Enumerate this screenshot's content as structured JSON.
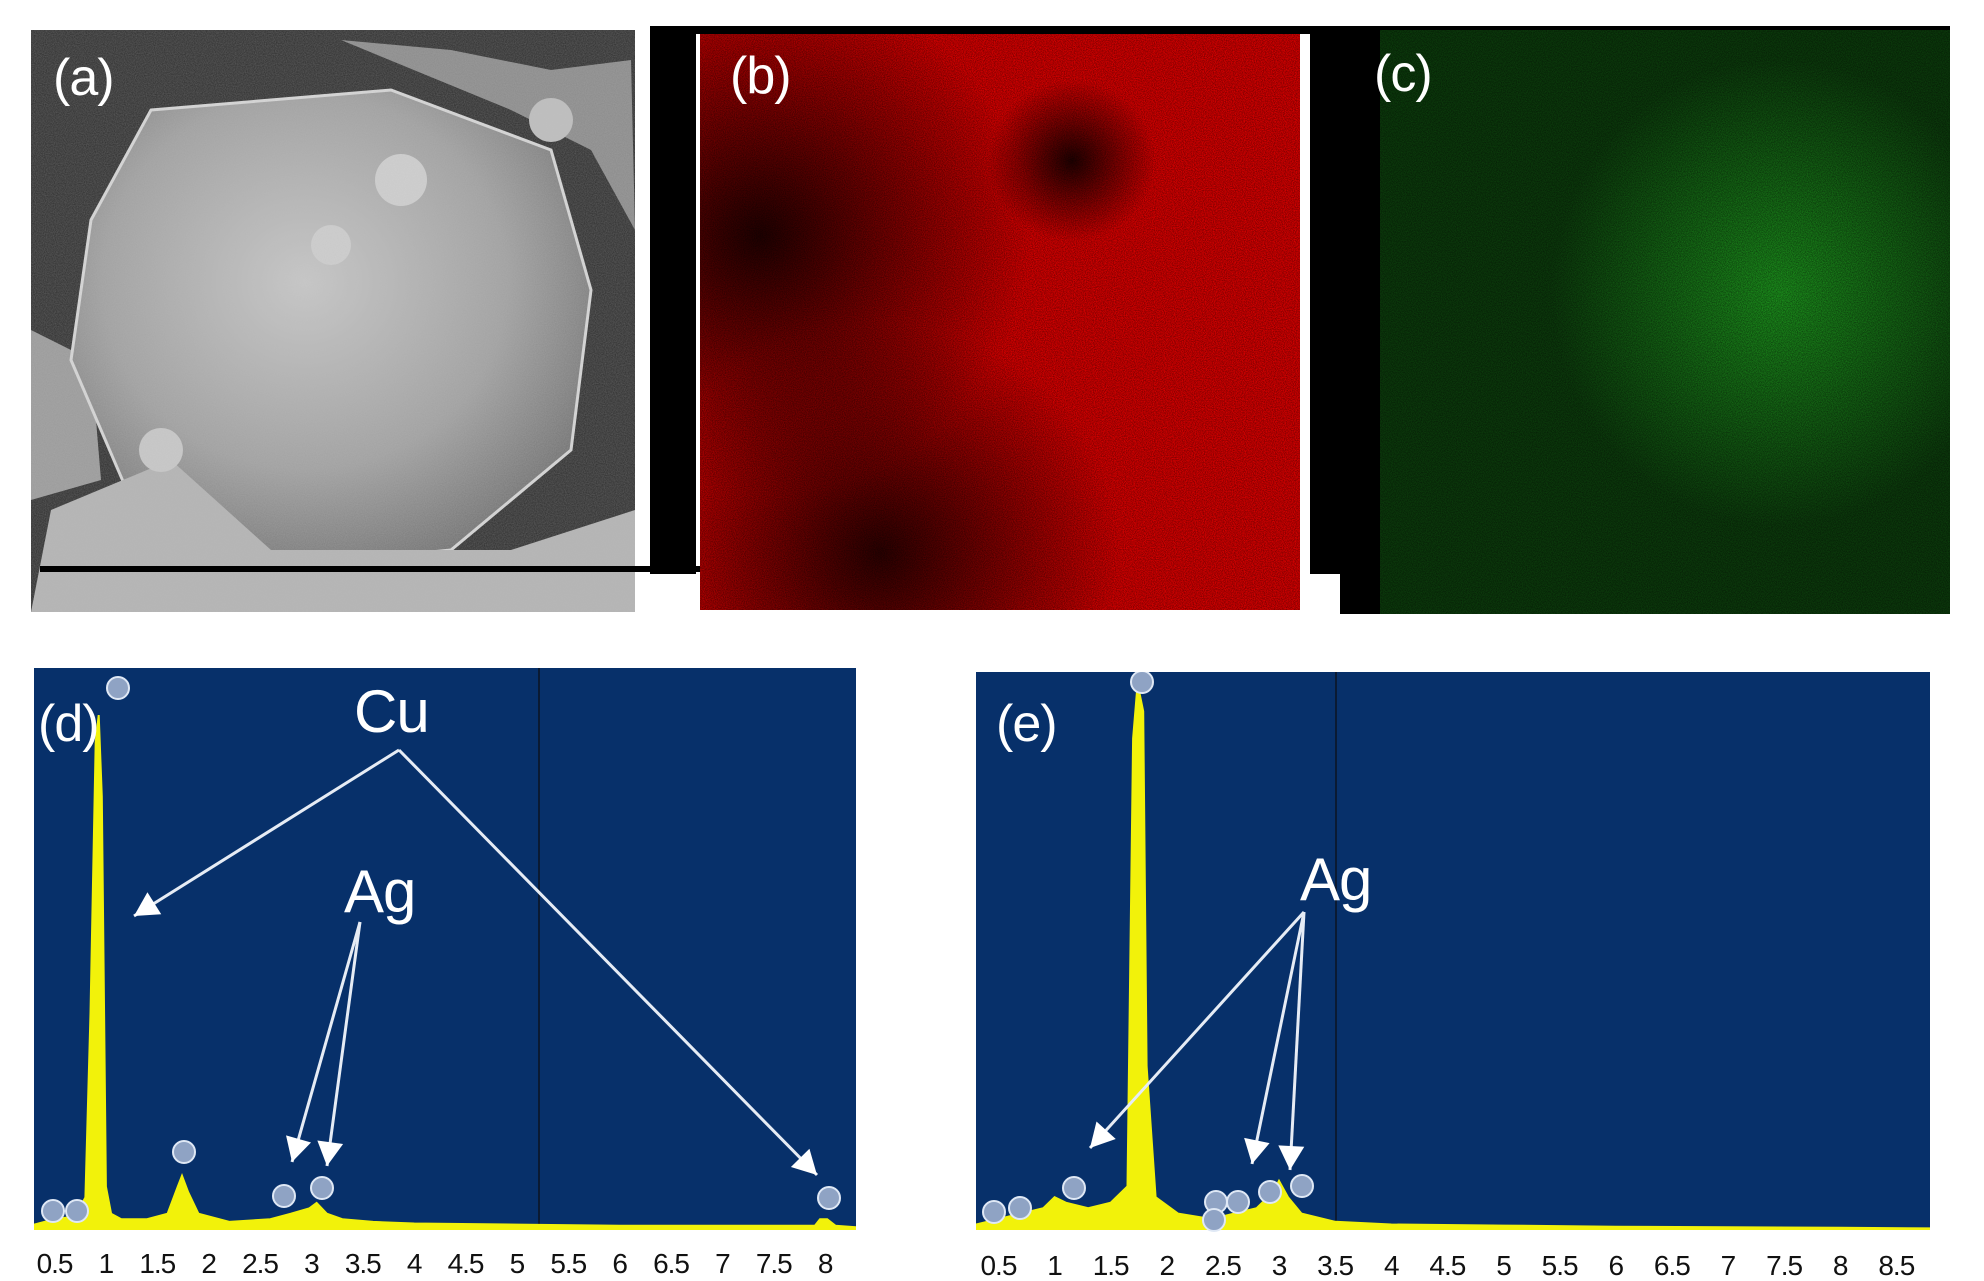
{
  "panels": {
    "a": {
      "label": "(a)"
    },
    "b": {
      "label": "(b)"
    },
    "c": {
      "label": "(c)"
    },
    "d": {
      "label": "(d)"
    },
    "e": {
      "label": "(e)"
    }
  },
  "annotations": {
    "d_cu": "Cu",
    "d_ag": "Ag",
    "e_ag": "Ag"
  },
  "colors": {
    "spectrum_bg": "#07306a",
    "peak": "#f2f20a",
    "map_b": "#e60000",
    "map_c": "#1e9a1e",
    "arrow": "#e6ecf5"
  },
  "chart_data": [
    {
      "type": "line",
      "panel": "(d)",
      "xlabel": "",
      "ylabel": "",
      "xlim": [
        0.3,
        8.3
      ],
      "ylim": [
        0,
        100
      ],
      "tick_labels": [
        "0.5",
        "1",
        "1.5",
        "2",
        "2.5",
        "3",
        "3.5",
        "4",
        "4.5",
        "5",
        "5.5",
        "6",
        "6.5",
        "7",
        "7.5",
        "8"
      ],
      "ticks": [
        0.5,
        1,
        1.5,
        2,
        2.5,
        3,
        3.5,
        4,
        4.5,
        5,
        5.5,
        6,
        6.5,
        7,
        7.5,
        8
      ],
      "x": [
        0.3,
        0.5,
        0.7,
        0.8,
        0.85,
        0.9,
        0.93,
        0.96,
        1.0,
        1.05,
        1.15,
        1.4,
        1.6,
        1.7,
        1.74,
        1.8,
        1.9,
        2.2,
        2.6,
        2.8,
        2.98,
        3.05,
        3.15,
        3.3,
        3.6,
        4.0,
        5.0,
        6.0,
        7.0,
        7.9,
        7.95,
        8.02,
        8.1,
        8.3
      ],
      "y": [
        1,
        2,
        2.5,
        6,
        40,
        90,
        95,
        80,
        8,
        3,
        2,
        2,
        3,
        8,
        10,
        7,
        3,
        1.5,
        2,
        3,
        4,
        5,
        3,
        2,
        1.5,
        1.2,
        1,
        0.8,
        0.8,
        0.8,
        2,
        2,
        0.8,
        0.5
      ],
      "annotations": [
        "Cu",
        "Ag"
      ]
    },
    {
      "type": "line",
      "panel": "(e)",
      "xlabel": "",
      "ylabel": "",
      "xlim": [
        0.3,
        8.8
      ],
      "ylim": [
        0,
        100
      ],
      "tick_labels": [
        "0.5",
        "1",
        "1.5",
        "2",
        "2.5",
        "3",
        "3.5",
        "4",
        "4.5",
        "5",
        "5.5",
        "6",
        "6.5",
        "7",
        "7.5",
        "8",
        "8.5"
      ],
      "ticks": [
        0.5,
        1,
        1.5,
        2,
        2.5,
        3,
        3.5,
        4,
        4.5,
        5,
        5.5,
        6,
        6.5,
        7,
        7.5,
        8,
        8.5
      ],
      "x": [
        0.3,
        0.5,
        0.7,
        0.9,
        1.0,
        1.1,
        1.3,
        1.5,
        1.65,
        1.7,
        1.74,
        1.79,
        1.82,
        1.9,
        2.1,
        2.4,
        2.6,
        2.8,
        2.95,
        3.0,
        3.08,
        3.2,
        3.5,
        4.0,
        5.0,
        6.0,
        7.0,
        8.0,
        8.8
      ],
      "y": [
        1,
        2,
        3,
        4,
        6,
        5,
        4,
        5,
        8,
        90,
        100,
        95,
        30,
        6,
        3,
        2,
        3,
        4,
        7,
        9,
        6,
        3,
        1.5,
        1,
        0.8,
        0.6,
        0.5,
        0.4,
        0.3
      ],
      "annotations": [
        "Ag"
      ]
    }
  ]
}
